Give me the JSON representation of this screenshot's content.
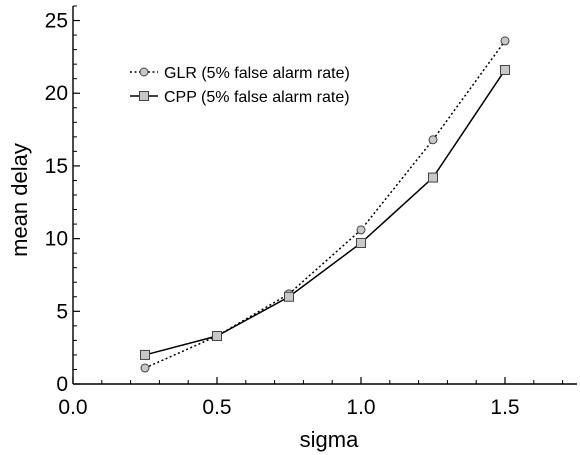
{
  "chart_data": {
    "type": "line",
    "xlabel": "sigma",
    "ylabel": "mean delay",
    "xlim": [
      0.0,
      1.75
    ],
    "ylim": [
      0,
      26
    ],
    "x_ticks": [
      "0.0",
      "0.5",
      "1.0",
      "1.5"
    ],
    "y_ticks": [
      "0",
      "5",
      "10",
      "15",
      "20",
      "25"
    ],
    "legend_position": "upper-left",
    "grid": false,
    "series": [
      {
        "name": "GLR (5% false alarm rate)",
        "line_style": "dotted",
        "marker": "circle",
        "marker_color": "#c8c8c8",
        "x": [
          0.25,
          0.5,
          0.75,
          1.0,
          1.25,
          1.5
        ],
        "y": [
          1.1,
          3.3,
          6.2,
          10.6,
          16.8,
          23.6
        ]
      },
      {
        "name": "CPP (5% false alarm rate)",
        "line_style": "solid",
        "marker": "square",
        "marker_color": "#c8c8c8",
        "x": [
          0.25,
          0.5,
          0.75,
          1.0,
          1.25,
          1.5
        ],
        "y": [
          2.0,
          3.3,
          6.0,
          9.7,
          14.2,
          21.6
        ]
      }
    ]
  }
}
